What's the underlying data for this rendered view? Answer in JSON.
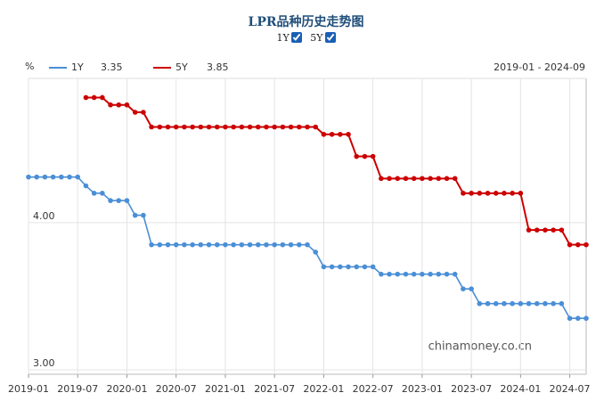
{
  "chart_data": {
    "type": "line",
    "title": "LPR品种历史走势图",
    "unit": "%",
    "range_label": "2019-01 - 2024-09",
    "watermark": "chinamoney.co.cn",
    "categories": [
      "2019-01",
      null,
      null,
      null,
      null,
      null,
      "2019-07",
      null,
      null,
      null,
      null,
      null,
      "2020-01",
      null,
      null,
      null,
      null,
      null,
      "2020-07",
      null,
      null,
      null,
      null,
      null,
      "2021-01",
      null,
      null,
      null,
      null,
      null,
      "2021-07",
      null,
      null,
      null,
      null,
      null,
      "2022-01",
      null,
      null,
      null,
      null,
      null,
      "2022-07",
      null,
      null,
      null,
      null,
      null,
      "2023-01",
      null,
      null,
      null,
      null,
      null,
      "2023-07",
      null,
      null,
      null,
      null,
      null,
      "2024-01",
      null,
      null,
      null,
      null,
      null,
      "2024-07",
      null,
      null
    ],
    "series": [
      {
        "name": "1Y",
        "color": "#4a8fd6",
        "values": [
          4.31,
          4.31,
          4.31,
          4.31,
          4.31,
          4.31,
          4.31,
          4.25,
          4.2,
          4.2,
          4.15,
          4.15,
          4.15,
          4.05,
          4.05,
          3.85,
          3.85,
          3.85,
          3.85,
          3.85,
          3.85,
          3.85,
          3.85,
          3.85,
          3.85,
          3.85,
          3.85,
          3.85,
          3.85,
          3.85,
          3.85,
          3.85,
          3.85,
          3.85,
          3.85,
          3.8,
          3.7,
          3.7,
          3.7,
          3.7,
          3.7,
          3.7,
          3.7,
          3.65,
          3.65,
          3.65,
          3.65,
          3.65,
          3.65,
          3.65,
          3.65,
          3.65,
          3.65,
          3.55,
          3.55,
          3.45,
          3.45,
          3.45,
          3.45,
          3.45,
          3.45,
          3.45,
          3.45,
          3.45,
          3.45,
          3.45,
          3.35,
          3.35,
          3.35
        ]
      },
      {
        "name": "5Y",
        "color": "#cc0000",
        "values": [
          null,
          null,
          null,
          null,
          null,
          null,
          null,
          4.85,
          4.85,
          4.85,
          4.8,
          4.8,
          4.8,
          4.75,
          4.75,
          4.65,
          4.65,
          4.65,
          4.65,
          4.65,
          4.65,
          4.65,
          4.65,
          4.65,
          4.65,
          4.65,
          4.65,
          4.65,
          4.65,
          4.65,
          4.65,
          4.65,
          4.65,
          4.65,
          4.65,
          4.65,
          4.6,
          4.6,
          4.6,
          4.6,
          4.45,
          4.45,
          4.45,
          4.3,
          4.3,
          4.3,
          4.3,
          4.3,
          4.3,
          4.3,
          4.3,
          4.3,
          4.3,
          4.2,
          4.2,
          4.2,
          4.2,
          4.2,
          4.2,
          4.2,
          4.2,
          3.95,
          3.95,
          3.95,
          3.95,
          3.95,
          3.85,
          3.85,
          3.85
        ]
      }
    ],
    "ylim": [
      2.97,
      4.98
    ],
    "yticks": [
      {
        "value": 3,
        "label": "3.00"
      },
      {
        "value": 4,
        "label": "4.00"
      }
    ],
    "grid": true
  }
}
